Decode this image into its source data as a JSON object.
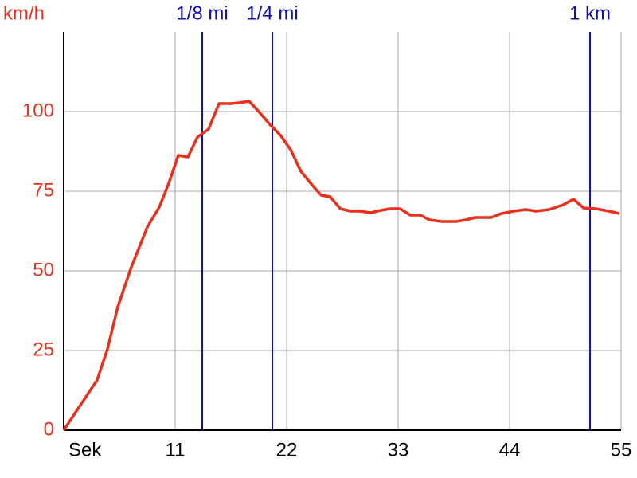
{
  "chart_data": {
    "type": "line",
    "y_label": "km/h",
    "color": "#e8301c",
    "x": [
      0,
      3.3,
      4.32,
      5.34,
      6.68,
      8.25,
      9.43,
      10.37,
      11.31,
      12.26,
      13.2,
      14.3,
      15.32,
      16.5,
      17.3,
      18.3,
      19.25,
      20.4,
      21.4,
      22.4,
      23.4,
      24.5,
      25.4,
      26.3,
      27.3,
      28.3,
      29.2,
      30.3,
      31.3,
      32.2,
      33.2,
      34.2,
      35.2,
      36.1,
      37.3,
      38.7,
      39.7,
      40.6,
      42.2,
      43.2,
      44.4,
      45.6,
      46.6,
      47.9,
      49.3,
      50.3,
      51.3,
      52.5,
      53.8,
      54.8
    ],
    "values": [
      0,
      15.75,
      25.5,
      38.75,
      51.25,
      63.75,
      70,
      77.5,
      86.25,
      85.75,
      92,
      94.5,
      102.5,
      102.5,
      102.75,
      103.25,
      100,
      95.75,
      92.5,
      88,
      81.25,
      77,
      73.75,
      73.25,
      69.5,
      68.75,
      68.75,
      68.25,
      69,
      69.5,
      69.5,
      67.5,
      67.5,
      66,
      65.5,
      65.5,
      66,
      66.75,
      66.75,
      68,
      68.75,
      69.25,
      68.75,
      69.25,
      70.75,
      72.5,
      69.75,
      69.5,
      68.75,
      68
    ],
    "xlim": [
      0,
      55
    ],
    "ylim": [
      0,
      125
    ],
    "xticks": [
      {
        "value": 0,
        "label": "Sek"
      },
      11,
      22,
      33,
      44,
      55
    ],
    "yticks": [
      0,
      25,
      50,
      75,
      100
    ],
    "grid": true,
    "markers": [
      {
        "label": "1/8 mi",
        "value": 13.67,
        "color": "#1010b0"
      },
      {
        "label": "1/4 mi",
        "value": 20.59,
        "color": "#1010b0"
      },
      {
        "label": "1 km",
        "value": 51.94,
        "color": "#1010b0"
      }
    ]
  }
}
